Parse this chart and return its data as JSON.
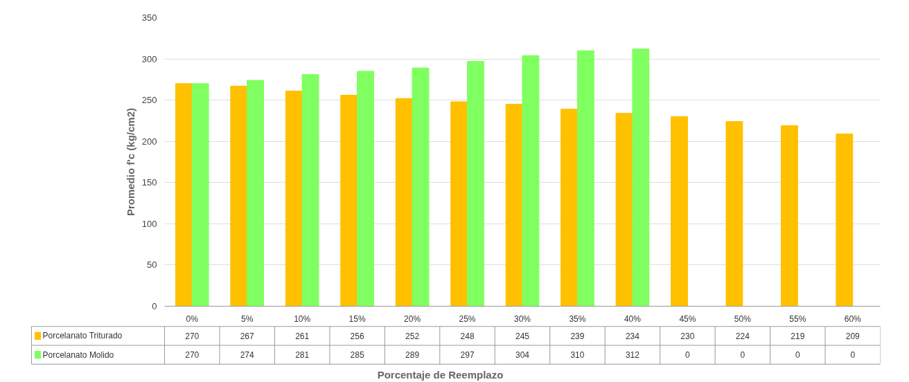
{
  "chart_data": {
    "type": "bar",
    "xlabel": "Porcentaje de Reemplazo",
    "ylabel": "Promedio f'c (kg/cm2)",
    "categories": [
      "0%",
      "5%",
      "10%",
      "15%",
      "20%",
      "25%",
      "30%",
      "35%",
      "40%",
      "45%",
      "50%",
      "55%",
      "60%"
    ],
    "series": [
      {
        "name": "Porcelanato Triturado",
        "color": "#ffc000",
        "values": [
          270,
          267,
          261,
          256,
          252,
          248,
          245,
          239,
          234,
          230,
          224,
          219,
          209
        ]
      },
      {
        "name": "Porcelanato Molido",
        "color": "#80ff60",
        "values": [
          270,
          274,
          281,
          285,
          289,
          297,
          304,
          310,
          312,
          0,
          0,
          0,
          0
        ]
      }
    ],
    "ylim": [
      0,
      350
    ],
    "yticks": [
      0,
      50,
      100,
      150,
      200,
      250,
      300,
      350
    ],
    "grid": "y",
    "legend": "bottom",
    "data_labels": true
  }
}
